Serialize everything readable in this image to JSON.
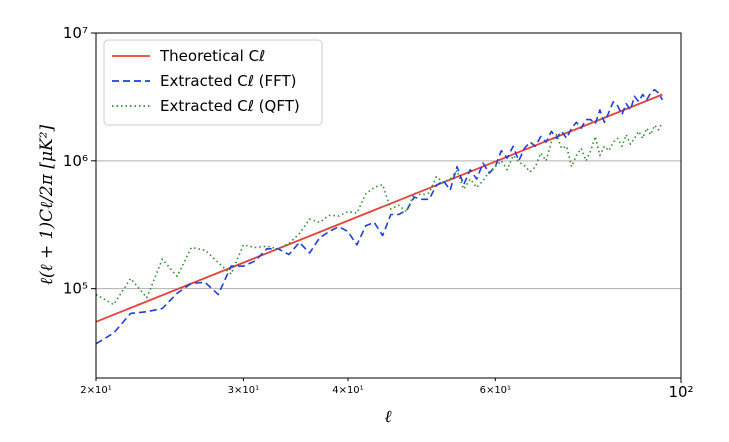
{
  "chart_data": {
    "type": "line",
    "xscale": "log",
    "yscale": "log",
    "xlim": [
      20,
      100
    ],
    "ylim": [
      20000,
      10000000
    ],
    "xlabel": "ℓ",
    "ylabel": "ℓ(ℓ + 1)Cℓ/2π [μK²]",
    "grid": "horizontal major lines",
    "legend_position": "upper-left",
    "x_ticks": [
      {
        "value": 20,
        "label": "2×10¹",
        "size": "minor"
      },
      {
        "value": 30,
        "label": "3×10¹",
        "size": "minor"
      },
      {
        "value": 40,
        "label": "4×10¹",
        "size": "minor"
      },
      {
        "value": 60,
        "label": "6×10¹",
        "size": "minor"
      },
      {
        "value": 100,
        "label": "10²",
        "size": "major"
      }
    ],
    "y_ticks": [
      {
        "value": 100000,
        "label": "10⁵"
      },
      {
        "value": 1000000,
        "label": "10⁶"
      },
      {
        "value": 10000000,
        "label": "10⁷"
      }
    ],
    "series": [
      {
        "name": "Theoretical Cℓ",
        "color": "#e8413a",
        "style": "solid",
        "x": [
          20,
          95
        ],
        "y": [
          55000,
          3300000
        ]
      },
      {
        "name": "Extracted Cℓ (FFT)",
        "color": "#1f3fd6",
        "style": "dashed",
        "x": [
          20,
          21,
          22,
          23,
          24,
          25,
          26,
          27,
          28,
          29,
          30,
          31,
          32,
          33,
          34,
          35,
          36,
          37,
          38,
          39,
          40,
          41,
          42,
          43,
          44,
          45,
          46,
          47,
          48,
          49,
          50,
          51,
          52,
          53,
          54,
          55,
          56,
          57,
          58,
          59,
          60,
          61,
          62,
          63,
          64,
          65,
          66,
          67,
          68,
          69,
          70,
          71,
          72,
          73,
          74,
          75,
          76,
          77,
          78,
          79,
          80,
          81,
          82,
          83,
          84,
          85,
          86,
          87,
          88,
          89,
          90,
          91,
          92,
          93,
          94,
          95
        ],
        "y": [
          37000,
          45000,
          64000,
          66000,
          70000,
          92000,
          110000,
          112000,
          90000,
          150000,
          150000,
          165000,
          205000,
          205000,
          185000,
          230000,
          190000,
          250000,
          280000,
          305000,
          280000,
          220000,
          310000,
          330000,
          260000,
          380000,
          380000,
          410000,
          520000,
          500000,
          500000,
          640000,
          700000,
          590000,
          900000,
          650000,
          850000,
          720000,
          960000,
          800000,
          900000,
          1200000,
          1050000,
          1300000,
          1000000,
          1250000,
          1400000,
          1300000,
          1550000,
          1400000,
          1700000,
          1500000,
          1700000,
          1500000,
          1800000,
          2000000,
          1800000,
          2100000,
          2100000,
          1950000,
          2500000,
          2000000,
          2400000,
          2900000,
          2700000,
          2300000,
          2800000,
          2500000,
          3200000,
          2900000,
          3300000,
          3000000,
          3400000,
          3600000,
          3400000,
          3000000
        ]
      },
      {
        "name": "Extracted Cℓ (QFT)",
        "color": "#2e8b2e",
        "style": "dotted",
        "x": [
          20,
          21,
          22,
          23,
          24,
          25,
          26,
          27,
          28,
          29,
          30,
          31,
          32,
          33,
          34,
          35,
          36,
          37,
          38,
          39,
          40,
          41,
          42,
          43,
          44,
          45,
          46,
          47,
          48,
          49,
          50,
          51,
          52,
          53,
          54,
          55,
          56,
          57,
          58,
          59,
          60,
          61,
          62,
          63,
          64,
          65,
          66,
          67,
          68,
          69,
          70,
          71,
          72,
          73,
          74,
          75,
          76,
          77,
          78,
          79,
          80,
          81,
          82,
          83,
          84,
          85,
          86,
          87,
          88,
          89,
          90,
          91,
          92,
          93,
          94,
          95
        ],
        "y": [
          90000,
          75000,
          120000,
          85000,
          170000,
          125000,
          210000,
          200000,
          160000,
          130000,
          220000,
          210000,
          215000,
          205000,
          225000,
          270000,
          350000,
          330000,
          375000,
          370000,
          400000,
          390000,
          550000,
          620000,
          650000,
          420000,
          450000,
          400000,
          560000,
          540000,
          560000,
          750000,
          680000,
          720000,
          840000,
          600000,
          720000,
          620000,
          700000,
          820000,
          900000,
          1000000,
          850000,
          1100000,
          980000,
          920000,
          820000,
          900000,
          1150000,
          1000000,
          1400000,
          1600000,
          1250000,
          1300000,
          900000,
          1100000,
          1250000,
          1000000,
          1200000,
          1550000,
          1100000,
          1300000,
          1200000,
          1400000,
          1500000,
          1300000,
          1600000,
          1350000,
          1500000,
          1700000,
          1500000,
          1800000,
          1600000,
          1900000,
          1750000,
          2000000
        ]
      }
    ]
  }
}
